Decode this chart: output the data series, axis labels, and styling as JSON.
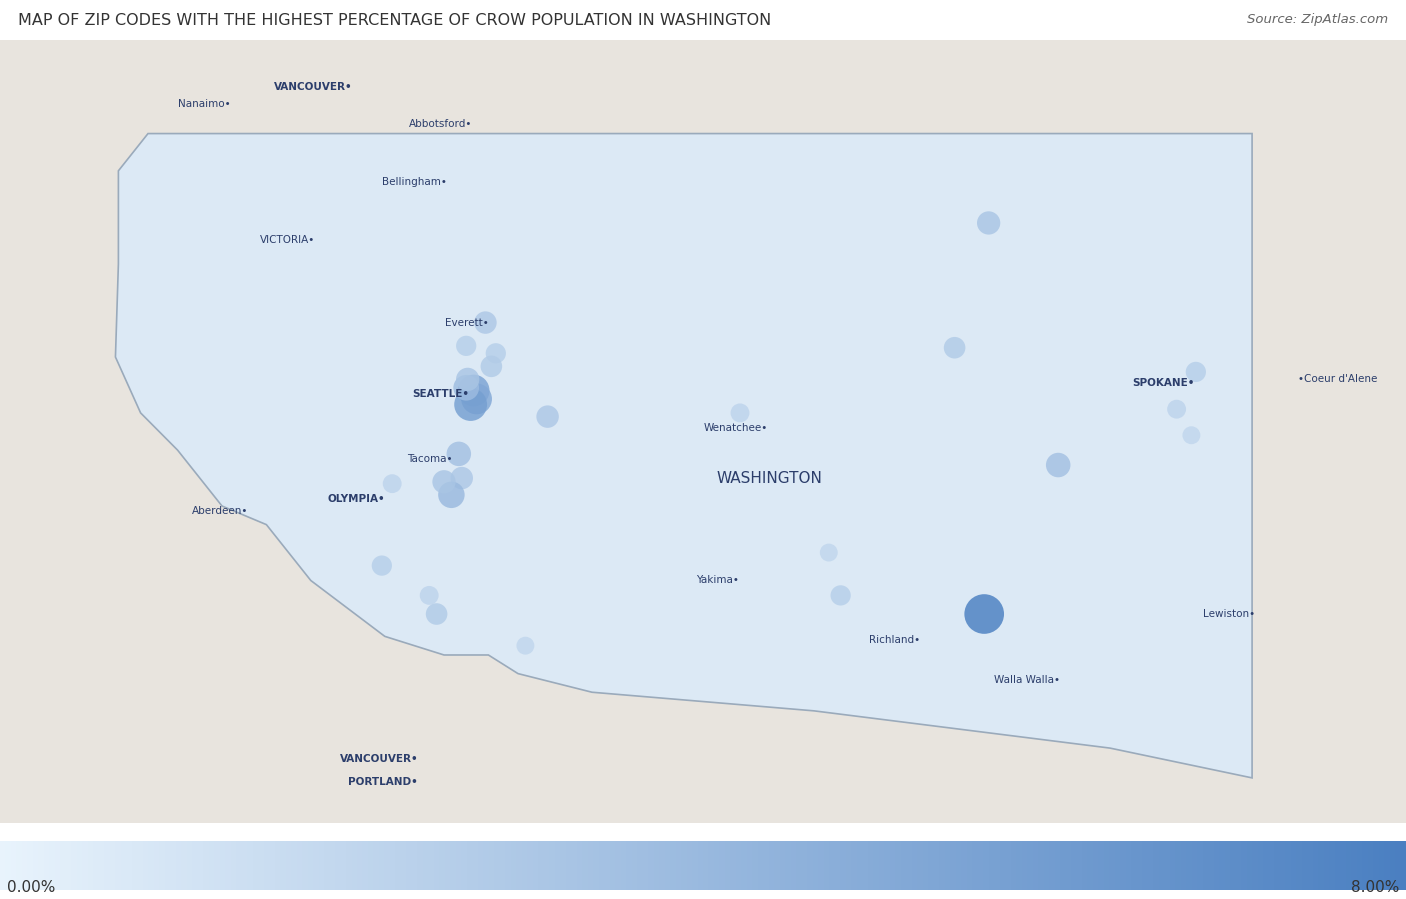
{
  "title": "MAP OF ZIP CODES WITH THE HIGHEST PERCENTAGE OF CROW POPULATION IN WASHINGTON",
  "source": "Source: ZipAtlas.com",
  "colorbar_min": 0.0,
  "colorbar_max": 8.0,
  "colorbar_min_label": "0.00%",
  "colorbar_max_label": "8.00%",
  "background_color": "#ffffff",
  "title_fontsize": 11.5,
  "source_fontsize": 9.5,
  "city_fontsize": 7.5,
  "washington_label": "WASHINGTON",
  "washington_label_lon": -120.3,
  "washington_label_lat": 47.15,
  "washington_fill": "#dce9f5",
  "washington_fill_alpha": 0.55,
  "cities": [
    {
      "name": "VANCOUVER•",
      "lon": -123.12,
      "lat": 49.25,
      "align": "right",
      "bold": true
    },
    {
      "name": "Nanaimo•",
      "lon": -123.94,
      "lat": 49.16,
      "align": "right",
      "bold": false
    },
    {
      "name": "Abbotsford•",
      "lon": -122.31,
      "lat": 49.05,
      "align": "right",
      "bold": false
    },
    {
      "name": "Bellingham•",
      "lon": -122.48,
      "lat": 48.74,
      "align": "right",
      "bold": false
    },
    {
      "name": "VICTORIA•",
      "lon": -123.37,
      "lat": 48.43,
      "align": "right",
      "bold": false
    },
    {
      "name": "Everett•",
      "lon": -122.2,
      "lat": 47.985,
      "align": "right",
      "bold": false
    },
    {
      "name": "SEATTLE•",
      "lon": -122.33,
      "lat": 47.6,
      "align": "right",
      "bold": true
    },
    {
      "name": "Tacoma•",
      "lon": -122.44,
      "lat": 47.25,
      "align": "right",
      "bold": false
    },
    {
      "name": "OLYMPIA•",
      "lon": -122.9,
      "lat": 47.04,
      "align": "right",
      "bold": true
    },
    {
      "name": "Aberdeen•",
      "lon": -123.82,
      "lat": 46.975,
      "align": "right",
      "bold": false
    },
    {
      "name": "Wenatchee•",
      "lon": -120.31,
      "lat": 47.42,
      "align": "right",
      "bold": false
    },
    {
      "name": "SPOKANE•",
      "lon": -117.43,
      "lat": 47.66,
      "align": "right",
      "bold": true
    },
    {
      "name": "•Coeur d'Alene",
      "lon": -116.73,
      "lat": 47.68,
      "align": "left",
      "bold": false
    },
    {
      "name": "Yakima•",
      "lon": -120.51,
      "lat": 46.6,
      "align": "right",
      "bold": false
    },
    {
      "name": "Richland•",
      "lon": -119.28,
      "lat": 46.28,
      "align": "right",
      "bold": false
    },
    {
      "name": "Walla Walla•",
      "lon": -118.34,
      "lat": 46.065,
      "align": "right",
      "bold": false
    },
    {
      "name": "Lewiston•",
      "lon": -117.02,
      "lat": 46.42,
      "align": "right",
      "bold": false
    },
    {
      "name": "VANCOUVER•",
      "lon": -122.674,
      "lat": 45.64,
      "align": "right",
      "bold": true
    },
    {
      "name": "PORTLAND•",
      "lon": -122.676,
      "lat": 45.52,
      "align": "right",
      "bold": true
    }
  ],
  "bubbles": [
    {
      "lon": -122.3,
      "lat": 47.62,
      "value": 5.5
    },
    {
      "lon": -122.28,
      "lat": 47.575,
      "value": 5.2
    },
    {
      "lon": -122.32,
      "lat": 47.545,
      "value": 5.8
    },
    {
      "lon": -122.35,
      "lat": 47.635,
      "value": 3.8
    },
    {
      "lon": -122.34,
      "lat": 47.68,
      "value": 3.2
    },
    {
      "lon": -122.22,
      "lat": 47.985,
      "value": 3.0
    },
    {
      "lon": -122.15,
      "lat": 47.82,
      "value": 2.5
    },
    {
      "lon": -122.18,
      "lat": 47.75,
      "value": 2.8
    },
    {
      "lon": -122.4,
      "lat": 47.28,
      "value": 3.5
    },
    {
      "lon": -122.38,
      "lat": 47.15,
      "value": 3.0
    },
    {
      "lon": -122.45,
      "lat": 47.06,
      "value": 4.0
    },
    {
      "lon": -122.5,
      "lat": 47.13,
      "value": 3.2
    },
    {
      "lon": -122.85,
      "lat": 47.12,
      "value": 2.2
    },
    {
      "lon": -121.8,
      "lat": 47.48,
      "value": 3.0
    },
    {
      "lon": -120.5,
      "lat": 47.5,
      "value": 2.2
    },
    {
      "lon": -119.9,
      "lat": 46.75,
      "value": 2.0
    },
    {
      "lon": -118.85,
      "lat": 46.42,
      "value": 8.0
    },
    {
      "lon": -117.42,
      "lat": 47.72,
      "value": 2.5
    },
    {
      "lon": -117.55,
      "lat": 47.52,
      "value": 2.2
    },
    {
      "lon": -117.45,
      "lat": 47.38,
      "value": 2.0
    },
    {
      "lon": -118.35,
      "lat": 47.22,
      "value": 3.5
    },
    {
      "lon": -119.05,
      "lat": 47.85,
      "value": 2.8
    },
    {
      "lon": -118.82,
      "lat": 48.52,
      "value": 3.2
    },
    {
      "lon": -122.35,
      "lat": 47.86,
      "value": 2.5
    },
    {
      "lon": -119.82,
      "lat": 46.52,
      "value": 2.5
    },
    {
      "lon": -122.6,
      "lat": 46.52,
      "value": 2.2
    },
    {
      "lon": -122.55,
      "lat": 46.42,
      "value": 2.8
    },
    {
      "lon": -121.95,
      "lat": 46.25,
      "value": 2.0
    },
    {
      "lon": -122.92,
      "lat": 46.68,
      "value": 2.5
    }
  ],
  "extent": [
    -125.5,
    -116.0,
    45.3,
    49.5
  ],
  "title_color": "#333333",
  "city_color": "#2c3e6b",
  "wa_label_color": "#2c3e6b",
  "colorbar_colors": [
    "#e8f3fc",
    "#4a7fc1"
  ],
  "bubble_alpha": 0.82,
  "bubble_edge": "none"
}
